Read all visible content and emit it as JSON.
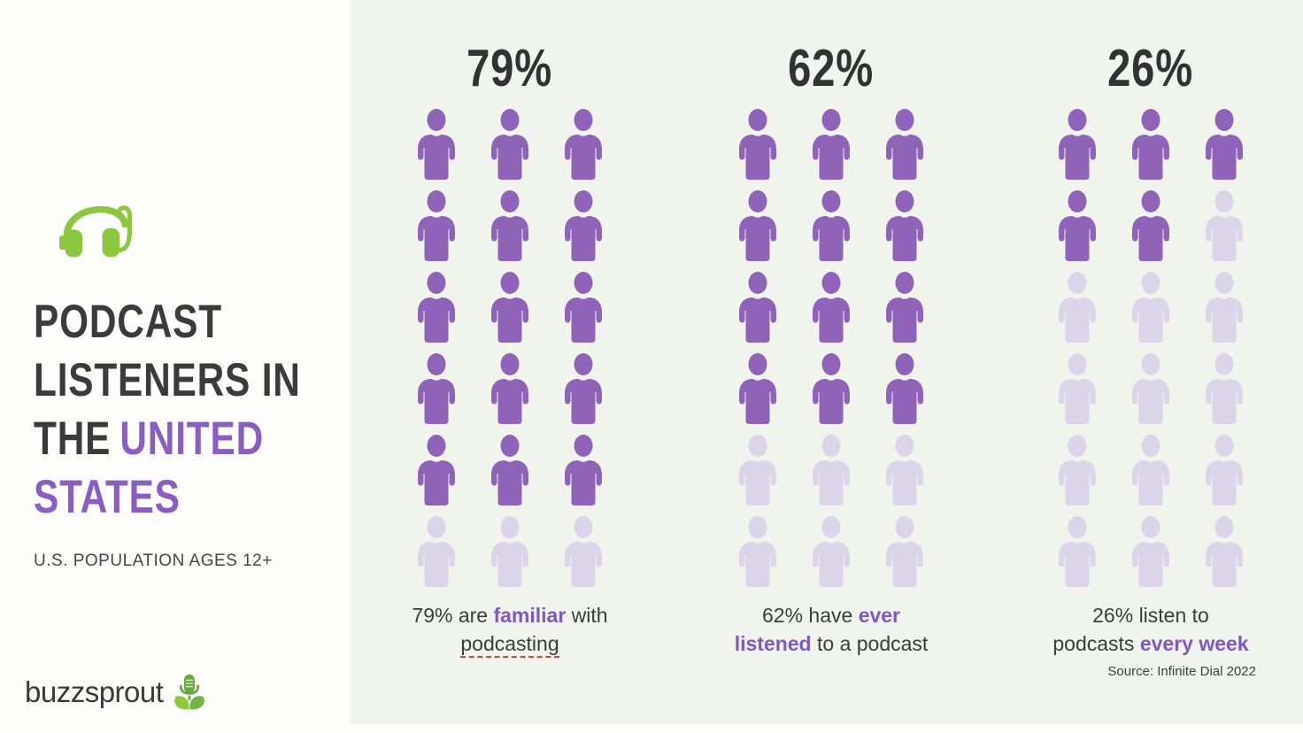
{
  "page": {
    "background_left": "#fdfdfc",
    "background_panel": "#f1f4ec"
  },
  "sidebar": {
    "headphones_icon": "headphones-icon",
    "title_lines": [
      {
        "segments": [
          {
            "text": "PODCAST",
            "accent": false
          }
        ]
      },
      {
        "segments": [
          {
            "text": "LISTENERS IN",
            "accent": false
          }
        ]
      },
      {
        "segments": [
          {
            "text": "THE",
            "accent": false
          },
          {
            "text": "UNITED",
            "accent": true
          }
        ]
      },
      {
        "segments": [
          {
            "text": "STATES",
            "accent": true
          }
        ]
      }
    ],
    "subtitle": "U.S. POPULATION AGES 12+",
    "logo": {
      "text": "buzzsprout",
      "icon": "mic-sprout-icon"
    }
  },
  "colors": {
    "title_dark": "#3b3a3c",
    "title_accent_purple": "#8a5dc2",
    "caption_accent_purple": "#7f57c6",
    "brand_green": "#8dc63f",
    "person_filled": "#8f63b7",
    "person_unfilled": "#dcd4e9",
    "squiggle_red": "#c9473d"
  },
  "chart_data": {
    "type": "pictogram",
    "title": "Podcast Listeners in the United States",
    "population_note": "U.S. Population Ages 12+",
    "unit_icon": "person-icon",
    "units_per_group": 18,
    "grid": {
      "columns": 3,
      "rows": 6
    },
    "legend_position": "none",
    "colors": {
      "filled": "#8f63b7",
      "unfilled": "#dcd4e9"
    },
    "groups": [
      {
        "value": 79,
        "value_label": "79%",
        "filled_units": 15,
        "caption_text": "79% are familiar with podcasting",
        "caption_segments": [
          {
            "text": "79% are "
          },
          {
            "text": "familiar",
            "em": true
          },
          {
            "text": " with"
          },
          {
            "br": true
          },
          {
            "text": "podcasting",
            "underline": true
          }
        ]
      },
      {
        "value": 62,
        "value_label": "62%",
        "filled_units": 12,
        "caption_text": "62% have ever listened to a podcast",
        "caption_segments": [
          {
            "text": "62% have "
          },
          {
            "text": "ever",
            "em": true
          },
          {
            "br": true
          },
          {
            "text": "listened",
            "em": true
          },
          {
            "text": " to a podcast"
          }
        ]
      },
      {
        "value": 26,
        "value_label": "26%",
        "filled_units": 5,
        "caption_text": "26% listen to podcasts every week",
        "caption_segments": [
          {
            "text": "26% listen to"
          },
          {
            "br": true
          },
          {
            "text": "podcasts "
          },
          {
            "text": "every week",
            "em": true
          }
        ]
      }
    ],
    "source": "Source: Infinite Dial 2022"
  }
}
